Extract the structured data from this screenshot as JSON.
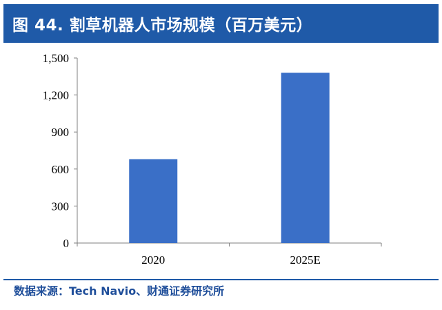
{
  "title": "图 44. 割草机器人市场规模（百万美元）",
  "source": "数据来源：Tech Navio、财通证券研究所",
  "colors": {
    "title_bg": "#1f5aa8",
    "bar": "#3a6fc7",
    "source_text": "#1f4e9a"
  },
  "chart_data": {
    "type": "bar",
    "title": "割草机器人市场规模（百万美元）",
    "categories": [
      "2020",
      "2025E"
    ],
    "values": [
      680,
      1380
    ],
    "xlabel": "",
    "ylabel": "",
    "ylim": [
      0,
      1500
    ],
    "yticks": [
      0,
      300,
      600,
      900,
      1200,
      1500
    ],
    "ytick_labels": [
      "0",
      "300",
      "600",
      "900",
      "1,200",
      "1,500"
    ],
    "grid": false,
    "legend": "none"
  }
}
